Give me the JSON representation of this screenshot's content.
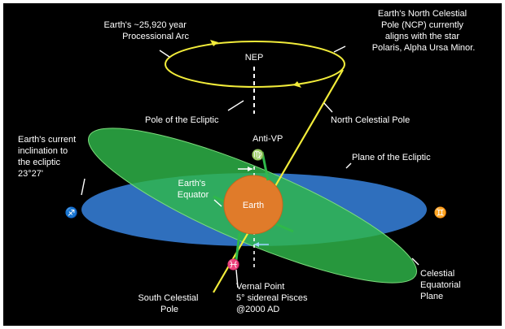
{
  "labels": {
    "precession_arc": [
      "Earth's ~25,920 year",
      "Processional Arc"
    ],
    "ncp_alignment": [
      "Earth's North Celestial",
      "Pole (NCP) currently",
      "aligns with the star",
      "Polaris, Alpha Ursa Minor."
    ],
    "nep": "NEP",
    "pole_of_ecliptic": "Pole of the Ecliptic",
    "north_celestial_pole": "North Celestial Pole",
    "inclination": [
      "Earth's current",
      "inclination to",
      "the ecliptic",
      "23°27'"
    ],
    "anti_vp": "Anti-VP",
    "plane_of_ecliptic": "Plane of the Ecliptic",
    "earths_equator": [
      "Earth's",
      "Equator"
    ],
    "earth": "Earth",
    "celestial_equatorial_plane": [
      "Celestial",
      "Equatorial",
      "Plane"
    ],
    "south_celestial_pole": [
      "South Celestial",
      "Pole"
    ],
    "vernal_point": [
      "Vernal Point",
      "5° sidereal Pisces",
      "@2000 AD"
    ]
  },
  "symbols": {
    "virgo": "♍",
    "sagittarius": "♐",
    "gemini": "♊",
    "pisces": "♓"
  },
  "colors": {
    "background": "#000000",
    "ecliptic_plane": "#2f6fbd",
    "equatorial_plane": "#2fb84a",
    "earth": "#e07b2a",
    "axis": "#f2ec3a",
    "text": "#ffffff"
  }
}
